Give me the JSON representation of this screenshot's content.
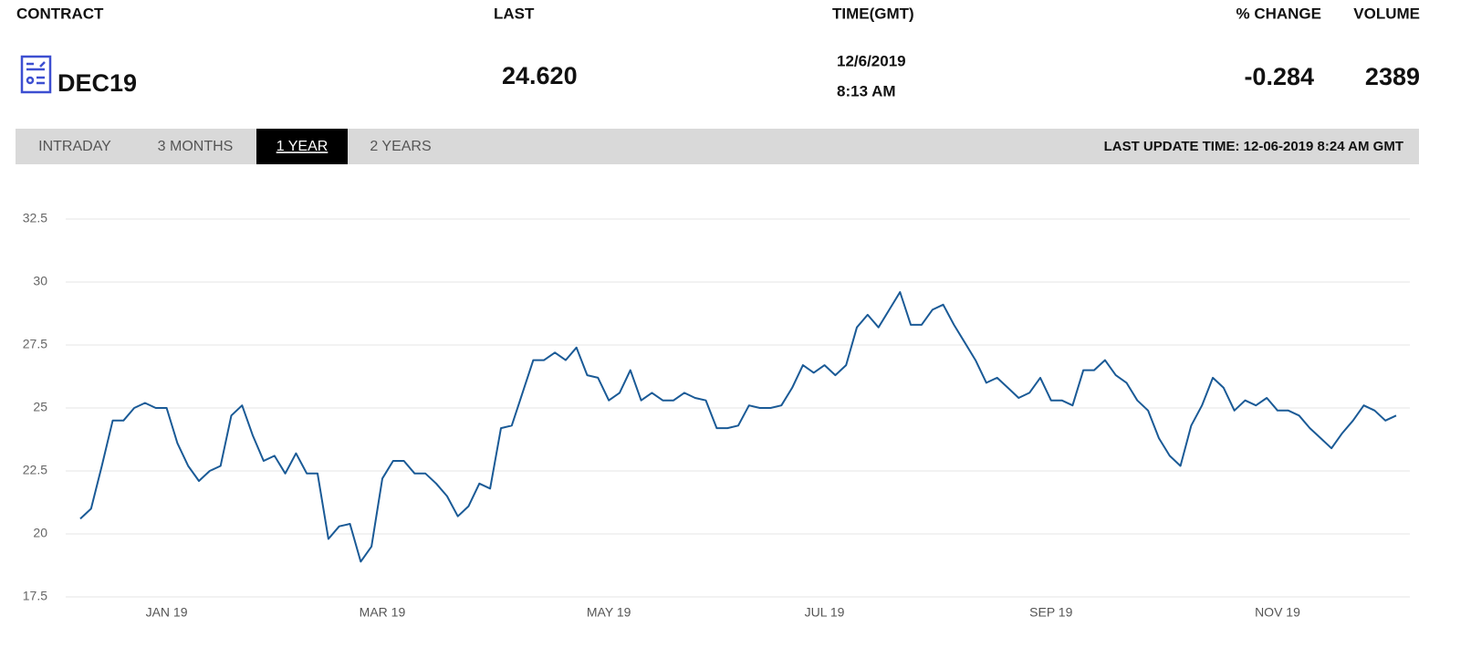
{
  "header": {
    "columns": [
      "CONTRACT",
      "LAST",
      "TIME(GMT)",
      "% CHANGE",
      "VOLUME"
    ],
    "contract": "DEC19",
    "last": "24.620",
    "date": "12/6/2019",
    "time": "8:13 AM",
    "change": "-0.284",
    "volume": "2389"
  },
  "tabs": [
    "INTRADAY",
    "3 MONTHS",
    "1 YEAR",
    "2 YEARS"
  ],
  "active_tab": 2,
  "last_update": "LAST UPDATE TIME: 12-06-2019 8:24 AM GMT",
  "chart_data": {
    "type": "line",
    "color": "#1a5a96",
    "grid": true,
    "ylim": [
      17.5,
      32.5
    ],
    "yticks": [
      17.5,
      20,
      22.5,
      25,
      27.5,
      30,
      32.5
    ],
    "categories": [
      null,
      null,
      null,
      null,
      null,
      null,
      null,
      null,
      "JAN 19",
      null,
      null,
      null,
      null,
      null,
      null,
      null,
      null,
      null,
      null,
      null,
      null,
      null,
      null,
      null,
      null,
      null,
      null,
      null,
      "MAR 19",
      null,
      null,
      null,
      null,
      null,
      null,
      null,
      null,
      null,
      null,
      null,
      null,
      null,
      null,
      null,
      null,
      null,
      null,
      null,
      null,
      "MAY 19",
      null,
      null,
      null,
      null,
      null,
      null,
      null,
      null,
      null,
      null,
      null,
      null,
      null,
      null,
      null,
      null,
      null,
      null,
      null,
      "JUL 19",
      null,
      null,
      null,
      null,
      null,
      null,
      null,
      null,
      null,
      null,
      null,
      null,
      null,
      null,
      null,
      null,
      null,
      null,
      null,
      null,
      "SEP 19",
      null,
      null,
      null,
      null,
      null,
      null,
      null,
      null,
      null,
      null,
      null,
      null,
      null,
      null,
      null,
      null,
      null,
      null,
      null,
      null,
      "NOV 19",
      null,
      null,
      null,
      null,
      null,
      null,
      null,
      null,
      null,
      null,
      null
    ],
    "values": [
      20.6,
      21.0,
      22.7,
      24.5,
      24.5,
      25.0,
      25.2,
      25.0,
      25.0,
      23.6,
      22.7,
      22.1,
      22.5,
      22.7,
      24.7,
      25.1,
      23.9,
      22.9,
      23.1,
      22.4,
      23.2,
      22.4,
      22.4,
      19.8,
      20.3,
      20.4,
      18.9,
      19.5,
      22.2,
      22.9,
      22.9,
      22.4,
      22.4,
      22.0,
      21.5,
      20.7,
      21.1,
      22.0,
      21.8,
      24.2,
      24.3,
      25.6,
      26.9,
      26.9,
      27.2,
      26.9,
      27.4,
      26.3,
      26.2,
      25.3,
      25.6,
      26.5,
      25.3,
      25.6,
      25.3,
      25.3,
      25.6,
      25.4,
      25.3,
      24.2,
      24.2,
      24.3,
      25.1,
      25.0,
      25.0,
      25.1,
      25.8,
      26.7,
      26.4,
      26.7,
      26.3,
      26.7,
      28.2,
      28.7,
      28.2,
      28.9,
      29.6,
      28.3,
      28.3,
      28.9,
      29.1,
      28.3,
      27.6,
      26.9,
      26.0,
      26.2,
      25.8,
      25.4,
      25.6,
      26.2,
      25.3,
      25.3,
      25.1,
      26.5,
      26.5,
      26.9,
      26.3,
      26.0,
      25.3,
      24.9,
      23.8,
      23.1,
      22.7,
      24.3,
      25.1,
      26.2,
      25.8,
      24.9,
      25.3,
      25.1,
      25.4,
      24.9,
      24.9,
      24.7,
      24.2,
      23.8,
      23.4,
      24.0,
      24.5,
      25.1,
      24.9,
      24.5,
      24.7
    ]
  }
}
